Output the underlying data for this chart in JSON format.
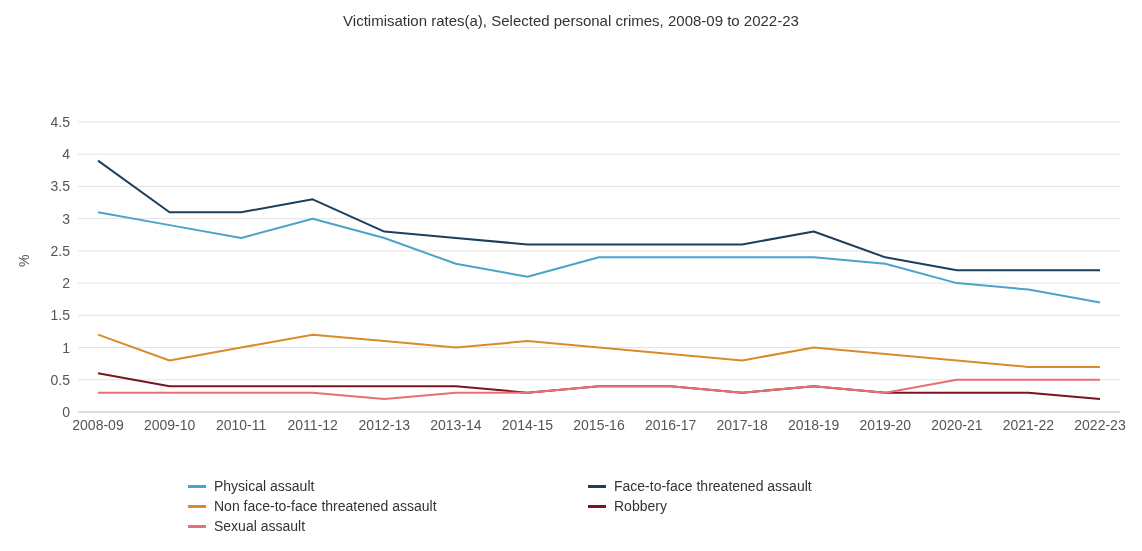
{
  "chart_data": {
    "type": "line",
    "title": "Victimisation rates(a), Selected personal crimes, 2008-09 to 2022-23",
    "ylabel": "%",
    "categories": [
      "2008-09",
      "2009-10",
      "2010-11",
      "2011-12",
      "2012-13",
      "2013-14",
      "2014-15",
      "2015-16",
      "2016-17",
      "2017-18",
      "2018-19",
      "2019-20",
      "2020-21",
      "2021-22",
      "2022-23"
    ],
    "series": [
      {
        "name": "Physical assault",
        "color": "#4ba3cc",
        "values": [
          3.1,
          2.9,
          2.7,
          3.0,
          2.7,
          2.3,
          2.1,
          2.4,
          2.4,
          2.4,
          2.4,
          2.3,
          2.0,
          1.9,
          1.7
        ]
      },
      {
        "name": "Face-to-face threatened assault",
        "color": "#1b3f5c",
        "values": [
          3.9,
          3.1,
          3.1,
          3.3,
          2.8,
          2.7,
          2.6,
          2.6,
          2.6,
          2.6,
          2.8,
          2.4,
          2.2,
          2.2,
          2.2
        ]
      },
      {
        "name": "Non face-to-face threatened assault",
        "color": "#d98b2b",
        "values": [
          1.2,
          0.8,
          1.0,
          1.2,
          1.1,
          1.0,
          1.1,
          1.0,
          0.9,
          0.8,
          1.0,
          0.9,
          0.8,
          0.7,
          0.7
        ]
      },
      {
        "name": "Robbery",
        "color": "#7a1420",
        "values": [
          0.6,
          0.4,
          0.4,
          0.4,
          0.4,
          0.4,
          0.3,
          0.4,
          0.4,
          0.3,
          0.4,
          0.3,
          0.3,
          0.3,
          0.2
        ]
      },
      {
        "name": "Sexual assault",
        "color": "#e87070",
        "values": [
          0.3,
          0.3,
          0.3,
          0.3,
          0.2,
          0.3,
          0.3,
          0.4,
          0.4,
          0.3,
          0.4,
          0.3,
          0.5,
          0.5,
          0.5
        ]
      }
    ],
    "ylim": [
      0,
      4.5
    ],
    "yticks": [
      0,
      0.5,
      1,
      1.5,
      2,
      2.5,
      3,
      3.5,
      4,
      4.5
    ],
    "grid": "y",
    "legend": "bottom",
    "marker": "none",
    "line_style": "solid"
  }
}
